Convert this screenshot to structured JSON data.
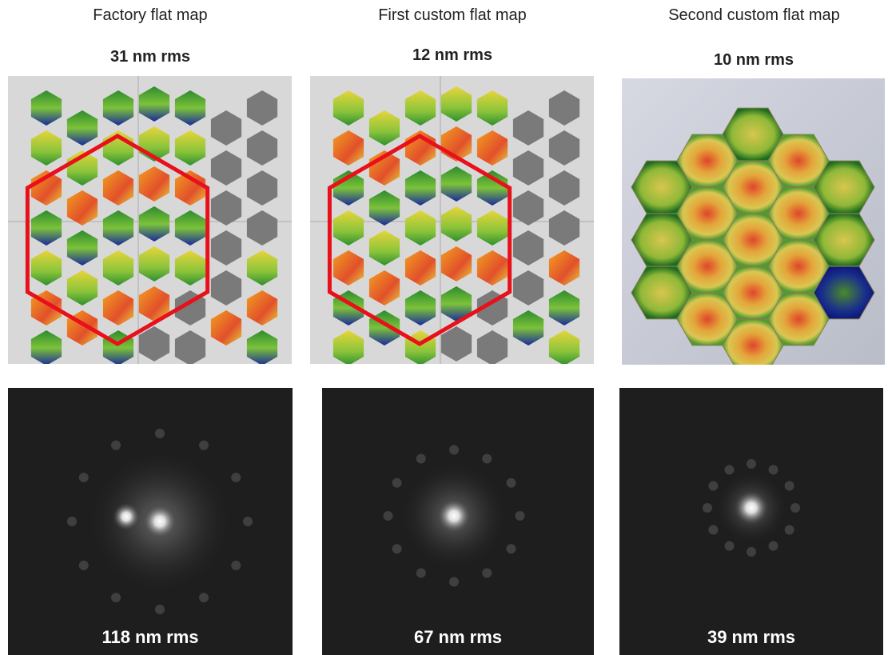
{
  "panels": [
    {
      "title": "Factory flat map",
      "top_label": "31 nm rms",
      "bottom_label": "118 nm rms"
    },
    {
      "title": "First custom flat map",
      "top_label": "12 nm rms",
      "bottom_label": "67 nm rms"
    },
    {
      "title": "Second custom flat map",
      "top_label": "10 nm rms",
      "bottom_label": "39 nm rms"
    }
  ]
}
